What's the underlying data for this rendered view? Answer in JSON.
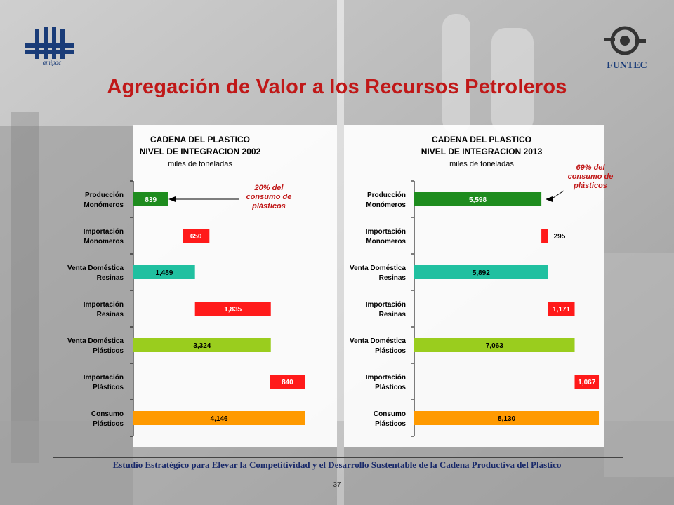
{
  "title": "Agregación de Valor a los Recursos Petroleros",
  "logos": {
    "left_text": "amipac",
    "right_text": "FUNTEC"
  },
  "footer": "Estudio Estratégico para Elevar la Competitividad y el Desarrollo Sustentable de la Cadena Productiva del Plástico",
  "page_number": "37",
  "chart_data": [
    {
      "type": "bar",
      "orientation": "horizontal",
      "title": [
        "CADENA DEL PLASTICO",
        "NIVEL DE INTEGRACION 2002",
        "miles de toneladas"
      ],
      "categories": [
        [
          "Producción",
          "Monómeros"
        ],
        [
          "Importación",
          "Monomeros"
        ],
        [
          "Venta Doméstica",
          "Resinas"
        ],
        [
          "Importación",
          "Resinas"
        ],
        [
          "Venta Doméstica",
          "Plásticos"
        ],
        [
          "Importación",
          "Plásticos"
        ],
        [
          "Consumo",
          "Plásticos"
        ]
      ],
      "bars": [
        {
          "label": "839",
          "start": 0,
          "value": 839,
          "color": "#1e8c1e"
        },
        {
          "label": "650",
          "start": 1189,
          "value": 650,
          "color": "#ff1a1a"
        },
        {
          "label": "1,489",
          "start": 0,
          "value": 1489,
          "color": "#20c0a0"
        },
        {
          "label": "1,835",
          "start": 1489,
          "value": 1835,
          "color": "#ff1a1a"
        },
        {
          "label": "3,324",
          "start": 0,
          "value": 3324,
          "color": "#9acd1e"
        },
        {
          "label": "840",
          "start": 3306,
          "value": 840,
          "color": "#ff1a1a"
        },
        {
          "label": "4,146",
          "start": 0,
          "value": 4146,
          "color": "#ff9a00"
        }
      ],
      "xlim": [
        0,
        4500
      ],
      "annotation": {
        "text": [
          "20% del",
          "consumo de",
          "plásticos"
        ],
        "target_bar": 0
      }
    },
    {
      "type": "bar",
      "orientation": "horizontal",
      "title": [
        "CADENA DEL PLASTICO",
        "NIVEL DE INTEGRACION 2013",
        "miles de toneladas"
      ],
      "categories": [
        [
          "Producción",
          "Monómeros"
        ],
        [
          "Importación",
          "Monomeros"
        ],
        [
          "Venta Doméstica",
          "Resinas"
        ],
        [
          "Importación",
          "Resinas"
        ],
        [
          "Venta Doméstica",
          "Plásticos"
        ],
        [
          "Importación",
          "Plásticos"
        ],
        [
          "Consumo",
          "Plásticos"
        ]
      ],
      "bars": [
        {
          "label": "5,598",
          "start": 0,
          "value": 5598,
          "color": "#1e8c1e"
        },
        {
          "label": "295",
          "start": 5597,
          "value": 295,
          "color": "#ff1a1a"
        },
        {
          "label": "5,892",
          "start": 0,
          "value": 5892,
          "color": "#20c0a0"
        },
        {
          "label": "1,171",
          "start": 5892,
          "value": 1171,
          "color": "#ff1a1a"
        },
        {
          "label": "7,063",
          "start": 0,
          "value": 7063,
          "color": "#9acd1e"
        },
        {
          "label": "1,067",
          "start": 7063,
          "value": 1067,
          "color": "#ff1a1a"
        },
        {
          "label": "8,130",
          "start": 0,
          "value": 8130,
          "color": "#ff9a00"
        }
      ],
      "xlim": [
        0,
        8500
      ],
      "annotation": {
        "text": [
          "69% del",
          "consumo de",
          "plásticos"
        ],
        "target_bar": 0
      }
    }
  ]
}
